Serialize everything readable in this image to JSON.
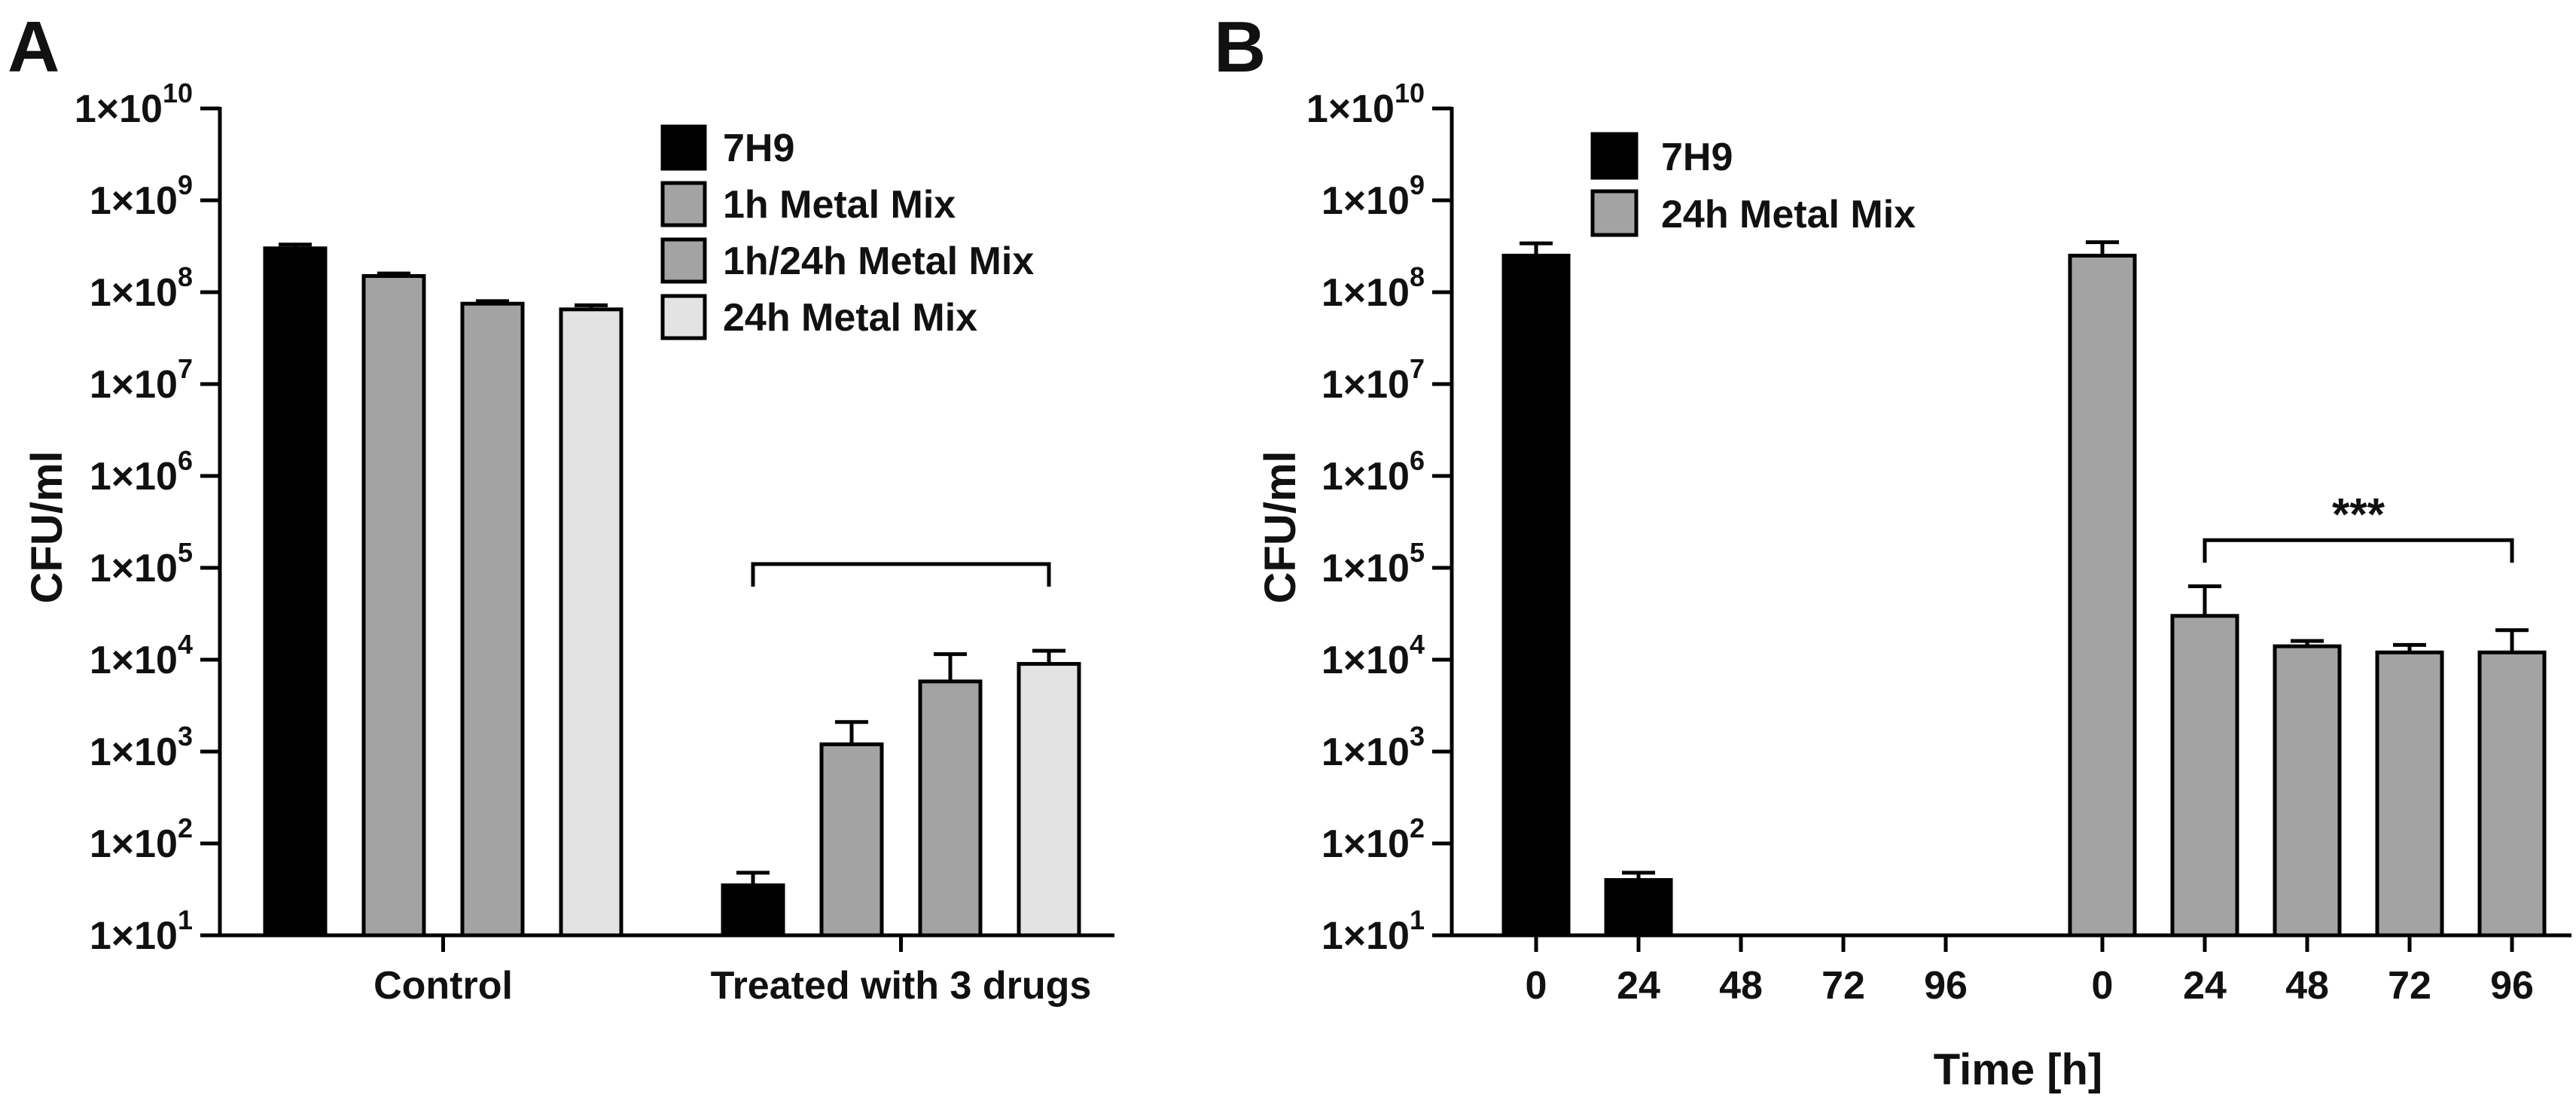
{
  "chart_data": [
    {
      "panel_label": "A",
      "type": "bar",
      "yscale": "log",
      "ylabel": "CFU/ml",
      "xlabel": "",
      "ylim": [
        10,
        10000000000
      ],
      "yticks": [
        {
          "value": 10,
          "base": "1×10",
          "exp": "1"
        },
        {
          "value": 100,
          "base": "1×10",
          "exp": "2"
        },
        {
          "value": 1000,
          "base": "1×10",
          "exp": "3"
        },
        {
          "value": 10000,
          "base": "1×10",
          "exp": "4"
        },
        {
          "value": 100000,
          "base": "1×10",
          "exp": "5"
        },
        {
          "value": 1000000,
          "base": "1×10",
          "exp": "6"
        },
        {
          "value": 10000000,
          "base": "1×10",
          "exp": "7"
        },
        {
          "value": 100000000,
          "base": "1×10",
          "exp": "8"
        },
        {
          "value": 1000000000,
          "base": "1×10",
          "exp": "9"
        },
        {
          "value": 10000000000,
          "base": "1×10",
          "exp": "10"
        }
      ],
      "categories": [
        "Control",
        "Treated with 3 drugs"
      ],
      "series": [
        {
          "name": "7H9",
          "color": "#000000",
          "values": [
            300000000,
            35
          ],
          "errors": [
            330000000,
            48
          ]
        },
        {
          "name": "1h Metal Mix",
          "color": "#a3a3a3",
          "values": [
            150000000,
            1200
          ],
          "errors": [
            160000000,
            2100
          ]
        },
        {
          "name": "1h/24h Metal Mix",
          "color": "#a3a3a3",
          "values": [
            75000000,
            5800
          ],
          "errors": [
            80000000,
            11500
          ]
        },
        {
          "name": "24h Metal Mix",
          "color": "#e3e3e3",
          "values": [
            65000000,
            9000
          ],
          "errors": [
            72000000,
            12500
          ]
        }
      ],
      "annotations": [
        {
          "text": "",
          "group": "Treated with 3 drugs",
          "from_series": 0,
          "to_series": 3,
          "level": 110000
        }
      ],
      "legend": "top-right"
    },
    {
      "panel_label": "B",
      "type": "bar",
      "yscale": "log",
      "ylabel": "CFU/ml",
      "xlabel": "Time [h]",
      "ylim": [
        10,
        10000000000
      ],
      "yticks": [
        {
          "value": 10,
          "base": "1×10",
          "exp": "1"
        },
        {
          "value": 100,
          "base": "1×10",
          "exp": "2"
        },
        {
          "value": 1000,
          "base": "1×10",
          "exp": "3"
        },
        {
          "value": 10000,
          "base": "1×10",
          "exp": "4"
        },
        {
          "value": 100000,
          "base": "1×10",
          "exp": "5"
        },
        {
          "value": 1000000,
          "base": "1×10",
          "exp": "6"
        },
        {
          "value": 10000000,
          "base": "1×10",
          "exp": "7"
        },
        {
          "value": 100000000,
          "base": "1×10",
          "exp": "8"
        },
        {
          "value": 1000000000,
          "base": "1×10",
          "exp": "9"
        },
        {
          "value": 10000000000,
          "base": "1×10",
          "exp": "10"
        }
      ],
      "categories": [
        "0",
        "24",
        "48",
        "72",
        "96"
      ],
      "series": [
        {
          "name": "7H9",
          "color": "#000000",
          "values": [
            250000000,
            40,
            null,
            null,
            null
          ],
          "errors": [
            340000000,
            48,
            null,
            null,
            null
          ]
        },
        {
          "name": "24h Metal Mix",
          "color": "#a3a3a3",
          "values": [
            250000000,
            30000,
            14000,
            12000,
            12000
          ],
          "errors": [
            350000000,
            63000,
            16000,
            14500,
            21000
          ]
        }
      ],
      "annotations": [
        {
          "text": "***",
          "series": 1,
          "from_category": 1,
          "to_category": 4,
          "level": 200000
        }
      ],
      "legend": "top-left"
    }
  ]
}
